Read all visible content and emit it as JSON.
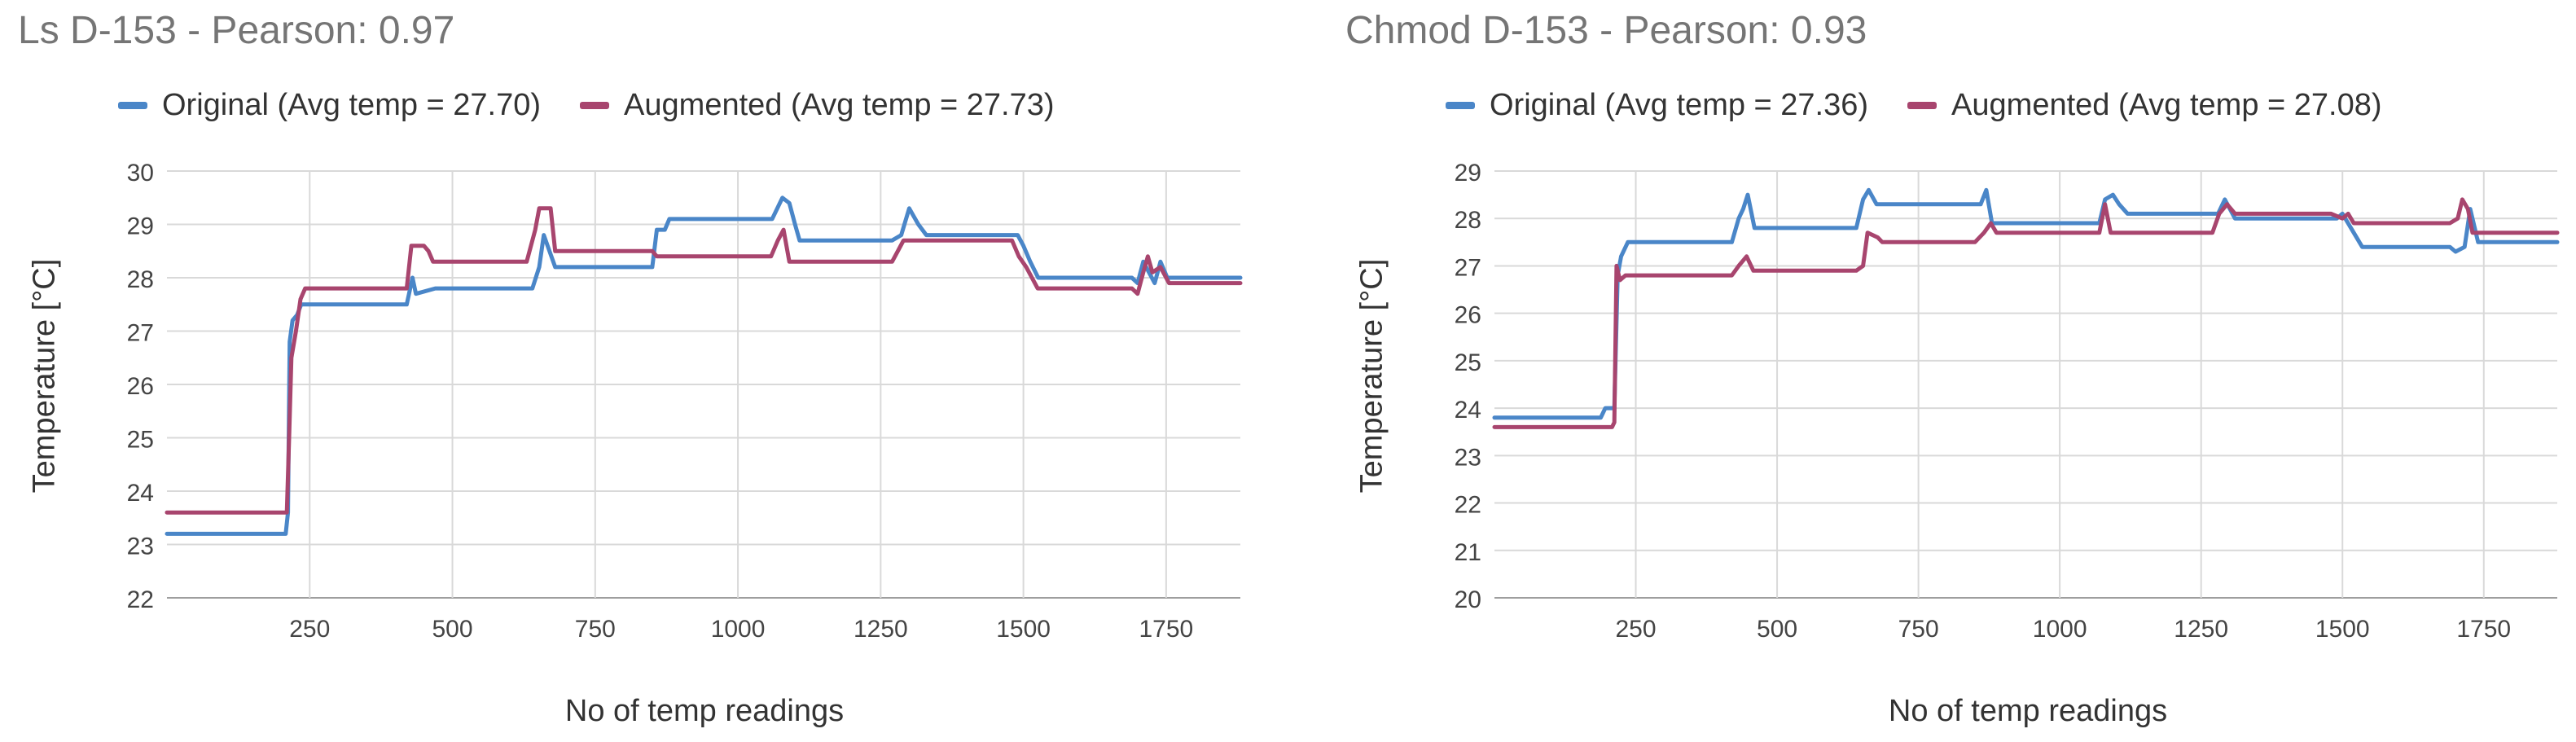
{
  "chart_data": [
    {
      "type": "line",
      "title": "Ls D-153 - Pearson: 0.97",
      "xlabel": "No of temp readings",
      "ylabel": "Temperature [°C]",
      "xlim": [
        0,
        1880
      ],
      "ylim": [
        22,
        30
      ],
      "xticks": [
        250,
        500,
        750,
        1000,
        1250,
        1500,
        1750
      ],
      "yticks": [
        22,
        23,
        24,
        25,
        26,
        27,
        28,
        29,
        30
      ],
      "grid": true,
      "legend_position": "top",
      "series": [
        {
          "name": "Original (Avg temp = 27.70)",
          "color": "#4a86c8",
          "points": [
            [
              0,
              23.2
            ],
            [
              208,
              23.2
            ],
            [
              212,
              23.6
            ],
            [
              215,
              26.8
            ],
            [
              220,
              27.2
            ],
            [
              228,
              27.3
            ],
            [
              235,
              27.5
            ],
            [
              420,
              27.5
            ],
            [
              430,
              28.0
            ],
            [
              436,
              27.7
            ],
            [
              470,
              27.8
            ],
            [
              640,
              27.8
            ],
            [
              652,
              28.2
            ],
            [
              660,
              28.8
            ],
            [
              670,
              28.5
            ],
            [
              680,
              28.2
            ],
            [
              850,
              28.2
            ],
            [
              858,
              28.9
            ],
            [
              872,
              28.9
            ],
            [
              880,
              29.1
            ],
            [
              1060,
              29.1
            ],
            [
              1078,
              29.5
            ],
            [
              1090,
              29.4
            ],
            [
              1100,
              29.0
            ],
            [
              1108,
              28.7
            ],
            [
              1270,
              28.7
            ],
            [
              1286,
              28.8
            ],
            [
              1300,
              29.3
            ],
            [
              1316,
              29.0
            ],
            [
              1330,
              28.8
            ],
            [
              1490,
              28.8
            ],
            [
              1500,
              28.6
            ],
            [
              1512,
              28.3
            ],
            [
              1526,
              28.0
            ],
            [
              1690,
              28.0
            ],
            [
              1700,
              27.9
            ],
            [
              1710,
              28.3
            ],
            [
              1720,
              28.1
            ],
            [
              1730,
              27.9
            ],
            [
              1740,
              28.3
            ],
            [
              1752,
              28.0
            ],
            [
              1880,
              28.0
            ]
          ]
        },
        {
          "name": "Augmented (Avg temp = 27.73)",
          "color": "#a8456e",
          "points": [
            [
              0,
              23.6
            ],
            [
              210,
              23.6
            ],
            [
              214,
              25.0
            ],
            [
              218,
              26.5
            ],
            [
              226,
              27.0
            ],
            [
              234,
              27.6
            ],
            [
              242,
              27.8
            ],
            [
              420,
              27.8
            ],
            [
              428,
              28.6
            ],
            [
              450,
              28.6
            ],
            [
              458,
              28.5
            ],
            [
              466,
              28.3
            ],
            [
              630,
              28.3
            ],
            [
              645,
              28.9
            ],
            [
              652,
              29.3
            ],
            [
              672,
              29.3
            ],
            [
              680,
              28.5
            ],
            [
              850,
              28.5
            ],
            [
              858,
              28.4
            ],
            [
              870,
              28.4
            ],
            [
              1058,
              28.4
            ],
            [
              1070,
              28.7
            ],
            [
              1080,
              28.9
            ],
            [
              1090,
              28.3
            ],
            [
              1270,
              28.3
            ],
            [
              1280,
              28.5
            ],
            [
              1290,
              28.7
            ],
            [
              1480,
              28.7
            ],
            [
              1492,
              28.4
            ],
            [
              1505,
              28.2
            ],
            [
              1515,
              28.0
            ],
            [
              1525,
              27.8
            ],
            [
              1690,
              27.8
            ],
            [
              1700,
              27.7
            ],
            [
              1710,
              28.1
            ],
            [
              1718,
              28.4
            ],
            [
              1726,
              28.1
            ],
            [
              1740,
              28.2
            ],
            [
              1755,
              27.9
            ],
            [
              1880,
              27.9
            ]
          ]
        }
      ]
    },
    {
      "type": "line",
      "title": "Chmod D-153 - Pearson: 0.93",
      "xlabel": "No of temp readings",
      "ylabel": "Temperature [°C]",
      "xlim": [
        0,
        1880
      ],
      "ylim": [
        20,
        29
      ],
      "xticks": [
        250,
        500,
        750,
        1000,
        1250,
        1500,
        1750
      ],
      "yticks": [
        20,
        21,
        22,
        23,
        24,
        25,
        26,
        27,
        28,
        29
      ],
      "grid": true,
      "legend_position": "top",
      "series": [
        {
          "name": "Original (Avg temp = 27.36)",
          "color": "#4a86c8",
          "points": [
            [
              0,
              23.8
            ],
            [
              188,
              23.8
            ],
            [
              196,
              24.0
            ],
            [
              212,
              24.0
            ],
            [
              218,
              26.8
            ],
            [
              224,
              27.2
            ],
            [
              236,
              27.5
            ],
            [
              420,
              27.5
            ],
            [
              432,
              28.0
            ],
            [
              440,
              28.2
            ],
            [
              448,
              28.5
            ],
            [
              460,
              27.8
            ],
            [
              470,
              27.8
            ],
            [
              640,
              27.8
            ],
            [
              652,
              28.4
            ],
            [
              662,
              28.6
            ],
            [
              676,
              28.3
            ],
            [
              860,
              28.3
            ],
            [
              870,
              28.6
            ],
            [
              880,
              27.9
            ],
            [
              1070,
              27.9
            ],
            [
              1080,
              28.4
            ],
            [
              1094,
              28.5
            ],
            [
              1105,
              28.3
            ],
            [
              1120,
              28.1
            ],
            [
              1280,
              28.1
            ],
            [
              1292,
              28.4
            ],
            [
              1310,
              28.0
            ],
            [
              1490,
              28.0
            ],
            [
              1500,
              28.1
            ],
            [
              1520,
              27.7
            ],
            [
              1535,
              27.4
            ],
            [
              1690,
              27.4
            ],
            [
              1700,
              27.3
            ],
            [
              1716,
              27.4
            ],
            [
              1726,
              28.2
            ],
            [
              1740,
              27.5
            ],
            [
              1880,
              27.5
            ]
          ]
        },
        {
          "name": "Augmented (Avg temp = 27.08)",
          "color": "#a8456e",
          "points": [
            [
              0,
              23.6
            ],
            [
              208,
              23.6
            ],
            [
              212,
              23.7
            ],
            [
              216,
              27.0
            ],
            [
              222,
              26.7
            ],
            [
              232,
              26.8
            ],
            [
              420,
              26.8
            ],
            [
              432,
              27.0
            ],
            [
              446,
              27.2
            ],
            [
              458,
              26.9
            ],
            [
              640,
              26.9
            ],
            [
              652,
              27.0
            ],
            [
              660,
              27.7
            ],
            [
              678,
              27.6
            ],
            [
              686,
              27.5
            ],
            [
              850,
              27.5
            ],
            [
              866,
              27.7
            ],
            [
              878,
              27.9
            ],
            [
              888,
              27.7
            ],
            [
              1070,
              27.7
            ],
            [
              1080,
              28.3
            ],
            [
              1090,
              27.7
            ],
            [
              1270,
              27.7
            ],
            [
              1282,
              28.1
            ],
            [
              1296,
              28.3
            ],
            [
              1310,
              28.1
            ],
            [
              1480,
              28.1
            ],
            [
              1500,
              28.0
            ],
            [
              1510,
              28.1
            ],
            [
              1520,
              27.9
            ],
            [
              1690,
              27.9
            ],
            [
              1704,
              28.0
            ],
            [
              1712,
              28.4
            ],
            [
              1722,
              28.2
            ],
            [
              1730,
              27.7
            ],
            [
              1880,
              27.7
            ]
          ]
        }
      ]
    }
  ]
}
